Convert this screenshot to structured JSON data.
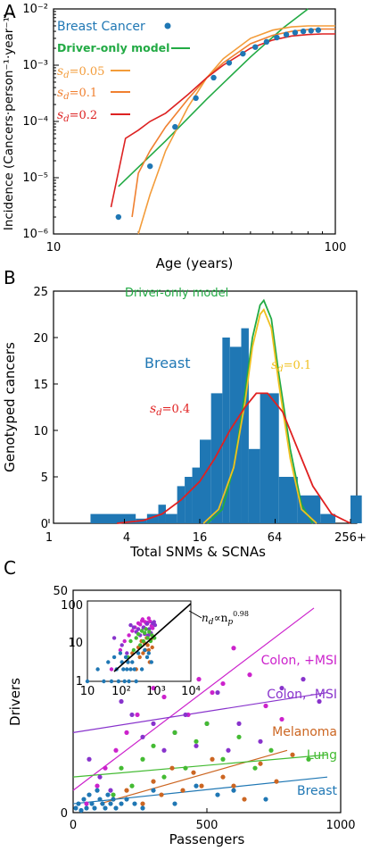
{
  "colors": {
    "breast": "#1f77b4",
    "driver": "#22aa44",
    "sd005": "#f39c3a",
    "sd01": "#f08030",
    "sd02": "#dd2222",
    "sd01_hist": "#f0c020",
    "sd04": "#e02020",
    "colon_msi_plus": "#cc22cc",
    "colon_msi_minus": "#8833cc",
    "melanoma": "#cc6622",
    "lung": "#44bb33",
    "breast_c": "#1f77b4"
  },
  "panels": {
    "A": {
      "label": "A"
    },
    "B": {
      "label": "B"
    },
    "C": {
      "label": "C"
    }
  },
  "chart_data": [
    {
      "type": "line",
      "panel": "A",
      "xlabel": "Age (years)",
      "ylabel": "Incidence (Cancers·person⁻¹·year⁻¹)",
      "xscale": "log",
      "yscale": "log",
      "xlim": [
        10,
        100
      ],
      "ylim": [
        1e-06,
        0.01
      ],
      "x_ticks": [
        "10",
        "100"
      ],
      "y_ticks": [
        "10⁻⁶",
        "10⁻⁵",
        "10⁻⁴",
        "10⁻³",
        "10⁻²"
      ],
      "legend": [
        {
          "name": "Breast Cancer",
          "kind": "point"
        },
        {
          "name": "Driver-only model",
          "kind": "line"
        },
        {
          "name": "s_d = 0.05",
          "sub": "d",
          "value": "=0.05",
          "kind": "line"
        },
        {
          "name": "s_d = 0.1",
          "sub": "d",
          "value": "=0.1",
          "kind": "line"
        },
        {
          "name": "s_d = 0.2",
          "sub": "d",
          "value": "=0.2",
          "kind": "line"
        }
      ],
      "series": [
        {
          "name": "Breast Cancer",
          "x": [
            17,
            22,
            27,
            32,
            37,
            42,
            47,
            52,
            57,
            62,
            67,
            72,
            77,
            82,
            87
          ],
          "y": [
            2e-06,
            1.6e-05,
            8e-05,
            0.00026,
            0.0006,
            0.0011,
            0.0016,
            0.0021,
            0.0026,
            0.0031,
            0.0035,
            0.0038,
            0.004,
            0.0041,
            0.0042
          ]
        },
        {
          "name": "Driver-only model",
          "x": [
            17,
            25,
            35,
            50,
            65,
            80
          ],
          "y": [
            7e-06,
            4.5e-05,
            0.00025,
            0.0014,
            0.0045,
            0.01
          ]
        },
        {
          "name": "s_d = 0.05",
          "x": [
            20,
            22,
            25,
            30,
            35,
            40,
            50,
            60,
            70,
            80,
            90,
            100
          ],
          "y": [
            1e-06,
            5e-06,
            3e-05,
            0.00018,
            0.0006,
            0.0013,
            0.003,
            0.0042,
            0.0048,
            0.005,
            0.005,
            0.005
          ]
        },
        {
          "name": "s_d = 0.1",
          "x": [
            19,
            20,
            22,
            25,
            30,
            35,
            40,
            50,
            60,
            70,
            80,
            90,
            100
          ],
          "y": [
            2e-06,
            1.2e-05,
            3e-05,
            8e-05,
            0.00025,
            0.0006,
            0.0011,
            0.0024,
            0.0034,
            0.004,
            0.0043,
            0.0044,
            0.0044
          ]
        },
        {
          "name": "s_d = 0.2",
          "x": [
            16,
            18,
            20,
            22,
            25,
            30,
            35,
            40,
            50,
            60,
            70,
            80,
            90,
            100
          ],
          "y": [
            3e-06,
            5e-05,
            7e-05,
            0.0001,
            0.00014,
            0.0003,
            0.0006,
            0.001,
            0.002,
            0.0028,
            0.0033,
            0.0035,
            0.0036,
            0.0036
          ]
        }
      ]
    },
    {
      "type": "bar",
      "panel": "B",
      "xlabel": "Total SNMs & SCNAs",
      "ylabel": "Genotyped cancers",
      "xscale": "log2",
      "ylim": [
        0,
        25
      ],
      "x_ticks": [
        "1",
        "4",
        "16",
        "64",
        "256+"
      ],
      "y_ticks": [
        "0",
        "5",
        "10",
        "15",
        "20",
        "25"
      ],
      "annotations": [
        {
          "text": "Driver-only model",
          "color": "driver"
        },
        {
          "text": "Breast",
          "color": "breast"
        },
        {
          "text": "s_d = 0.1",
          "sub": "d",
          "value": "=0.1",
          "color": "sd01_hist"
        },
        {
          "text": "s_d = 0.4",
          "sub": "d",
          "value": "=0.4",
          "color": "sd04"
        }
      ],
      "bins_log2": [
        [
          1.1,
          2.3
        ],
        [
          2.3,
          2.6
        ],
        [
          2.6,
          2.9
        ],
        [
          2.9,
          3.1
        ],
        [
          3.1,
          3.4
        ],
        [
          3.4,
          3.6
        ],
        [
          3.6,
          3.8
        ],
        [
          3.8,
          4.0
        ],
        [
          4.0,
          4.3
        ],
        [
          4.3,
          4.6
        ],
        [
          4.6,
          4.8
        ],
        [
          4.8,
          5.1
        ],
        [
          5.1,
          5.3
        ],
        [
          5.3,
          5.6
        ],
        [
          5.6,
          6.1
        ],
        [
          6.1,
          6.6
        ],
        [
          6.6,
          7.2
        ],
        [
          7.2,
          7.6
        ],
        [
          7.6,
          8.0
        ],
        [
          8.0,
          8.3
        ]
      ],
      "values": [
        1,
        0.5,
        1,
        2,
        1,
        4,
        5,
        6,
        9,
        14,
        20,
        19,
        21,
        8,
        14,
        5,
        3,
        1,
        0,
        3
      ],
      "series": [
        {
          "name": "Driver-only model",
          "x_log2": [
            4.2,
            4.6,
            4.9,
            5.2,
            5.4,
            5.6,
            5.7,
            5.9,
            6.1,
            6.4,
            6.7,
            7.0
          ],
          "y": [
            0,
            1.5,
            6,
            14,
            20,
            23.5,
            24,
            22,
            16,
            8,
            2,
            0
          ]
        },
        {
          "name": "s_d = 0.1",
          "x_log2": [
            4.1,
            4.5,
            4.9,
            5.2,
            5.4,
            5.6,
            5.7,
            5.9,
            6.1,
            6.4,
            6.7,
            7.1
          ],
          "y": [
            0,
            1.5,
            6,
            13,
            19,
            22.5,
            23,
            21,
            15,
            7,
            1.5,
            0
          ]
        },
        {
          "name": "s_d = 0.4",
          "x_log2": [
            1.8,
            2.5,
            3.0,
            3.5,
            4.0,
            4.4,
            4.8,
            5.2,
            5.5,
            5.8,
            6.2,
            6.6,
            7.0,
            7.5,
            8.0
          ],
          "y": [
            0,
            0.3,
            1,
            2.5,
            4.5,
            7,
            10,
            12.5,
            14,
            14,
            12,
            8,
            4,
            1,
            0
          ]
        }
      ]
    },
    {
      "type": "scatter",
      "panel": "C",
      "xlabel": "Passengers",
      "ylabel": "Drivers",
      "xlim": [
        0,
        1000
      ],
      "ylim": [
        0,
        50
      ],
      "x_ticks": [
        "0",
        "500",
        "1000"
      ],
      "y_ticks": [
        "0",
        "50"
      ],
      "inset": {
        "annotation": "n_d ∝ n_p^0.98",
        "ann_sub": "d",
        "ann_mid": "∝n",
        "ann_sub2": "p",
        "ann_sup": "0.98",
        "x_ticks": [
          "10",
          "10²",
          "10³",
          "10⁴"
        ],
        "y_ticks": [
          "1",
          "10",
          "100"
        ]
      },
      "series": [
        {
          "name": "Colon, +MSI",
          "color": "colon_msi_plus",
          "fit": [
            [
              0,
              5
            ],
            [
              900,
              46
            ]
          ],
          "x": [
            50,
            90,
            120,
            160,
            200,
            240,
            300,
            340,
            380,
            400,
            430,
            470,
            520,
            560,
            600,
            660,
            720,
            780
          ],
          "y": [
            2,
            6,
            10,
            14,
            18,
            22,
            28,
            26,
            32,
            35,
            22,
            30,
            27,
            29,
            37,
            31,
            24,
            21
          ]
        },
        {
          "name": "Colon, -MSI",
          "color": "colon_msi_minus",
          "fit": [
            [
              0,
              18
            ],
            [
              950,
              27
            ]
          ],
          "x": [
            60,
            100,
            140,
            180,
            220,
            260,
            300,
            340,
            380,
            420,
            460,
            500,
            540,
            580,
            620,
            700,
            780,
            860,
            920
          ],
          "y": [
            12,
            8,
            5,
            25,
            22,
            17,
            20,
            14,
            18,
            22,
            15,
            20,
            27,
            14,
            20,
            16,
            28,
            30,
            25
          ]
        },
        {
          "name": "Melanoma",
          "color": "melanoma",
          "fit": [
            [
              100,
              2
            ],
            [
              800,
              14
            ]
          ],
          "x": [
            150,
            200,
            260,
            300,
            330,
            370,
            410,
            450,
            480,
            520,
            560,
            600,
            640,
            700,
            760,
            820
          ],
          "y": [
            3,
            5,
            2,
            7,
            4,
            10,
            5,
            9,
            6,
            12,
            8,
            6,
            3,
            11,
            7,
            13
          ]
        },
        {
          "name": "Lung",
          "color": "lung",
          "fit": [
            [
              0,
              8
            ],
            [
              950,
              13
            ]
          ],
          "x": [
            150,
            180,
            220,
            260,
            300,
            340,
            380,
            420,
            460,
            500,
            560,
            620,
            680,
            740,
            880
          ],
          "y": [
            4,
            10,
            6,
            12,
            15,
            8,
            18,
            10,
            16,
            20,
            12,
            17,
            10,
            14,
            12
          ]
        },
        {
          "name": "Breast",
          "color": "breast_c",
          "fit": [
            [
              0,
              2
            ],
            [
              950,
              8
            ]
          ],
          "x": [
            10,
            20,
            30,
            40,
            50,
            60,
            70,
            80,
            90,
            100,
            110,
            120,
            130,
            140,
            150,
            160,
            180,
            200,
            230,
            260,
            300,
            380,
            460,
            540,
            600,
            720
          ],
          "y": [
            1,
            2,
            0.5,
            3,
            1,
            4,
            2,
            1,
            5,
            3,
            2,
            1,
            4,
            2,
            3,
            1,
            2,
            3,
            2,
            1,
            5,
            2,
            6,
            4,
            5,
            3
          ]
        }
      ]
    }
  ]
}
